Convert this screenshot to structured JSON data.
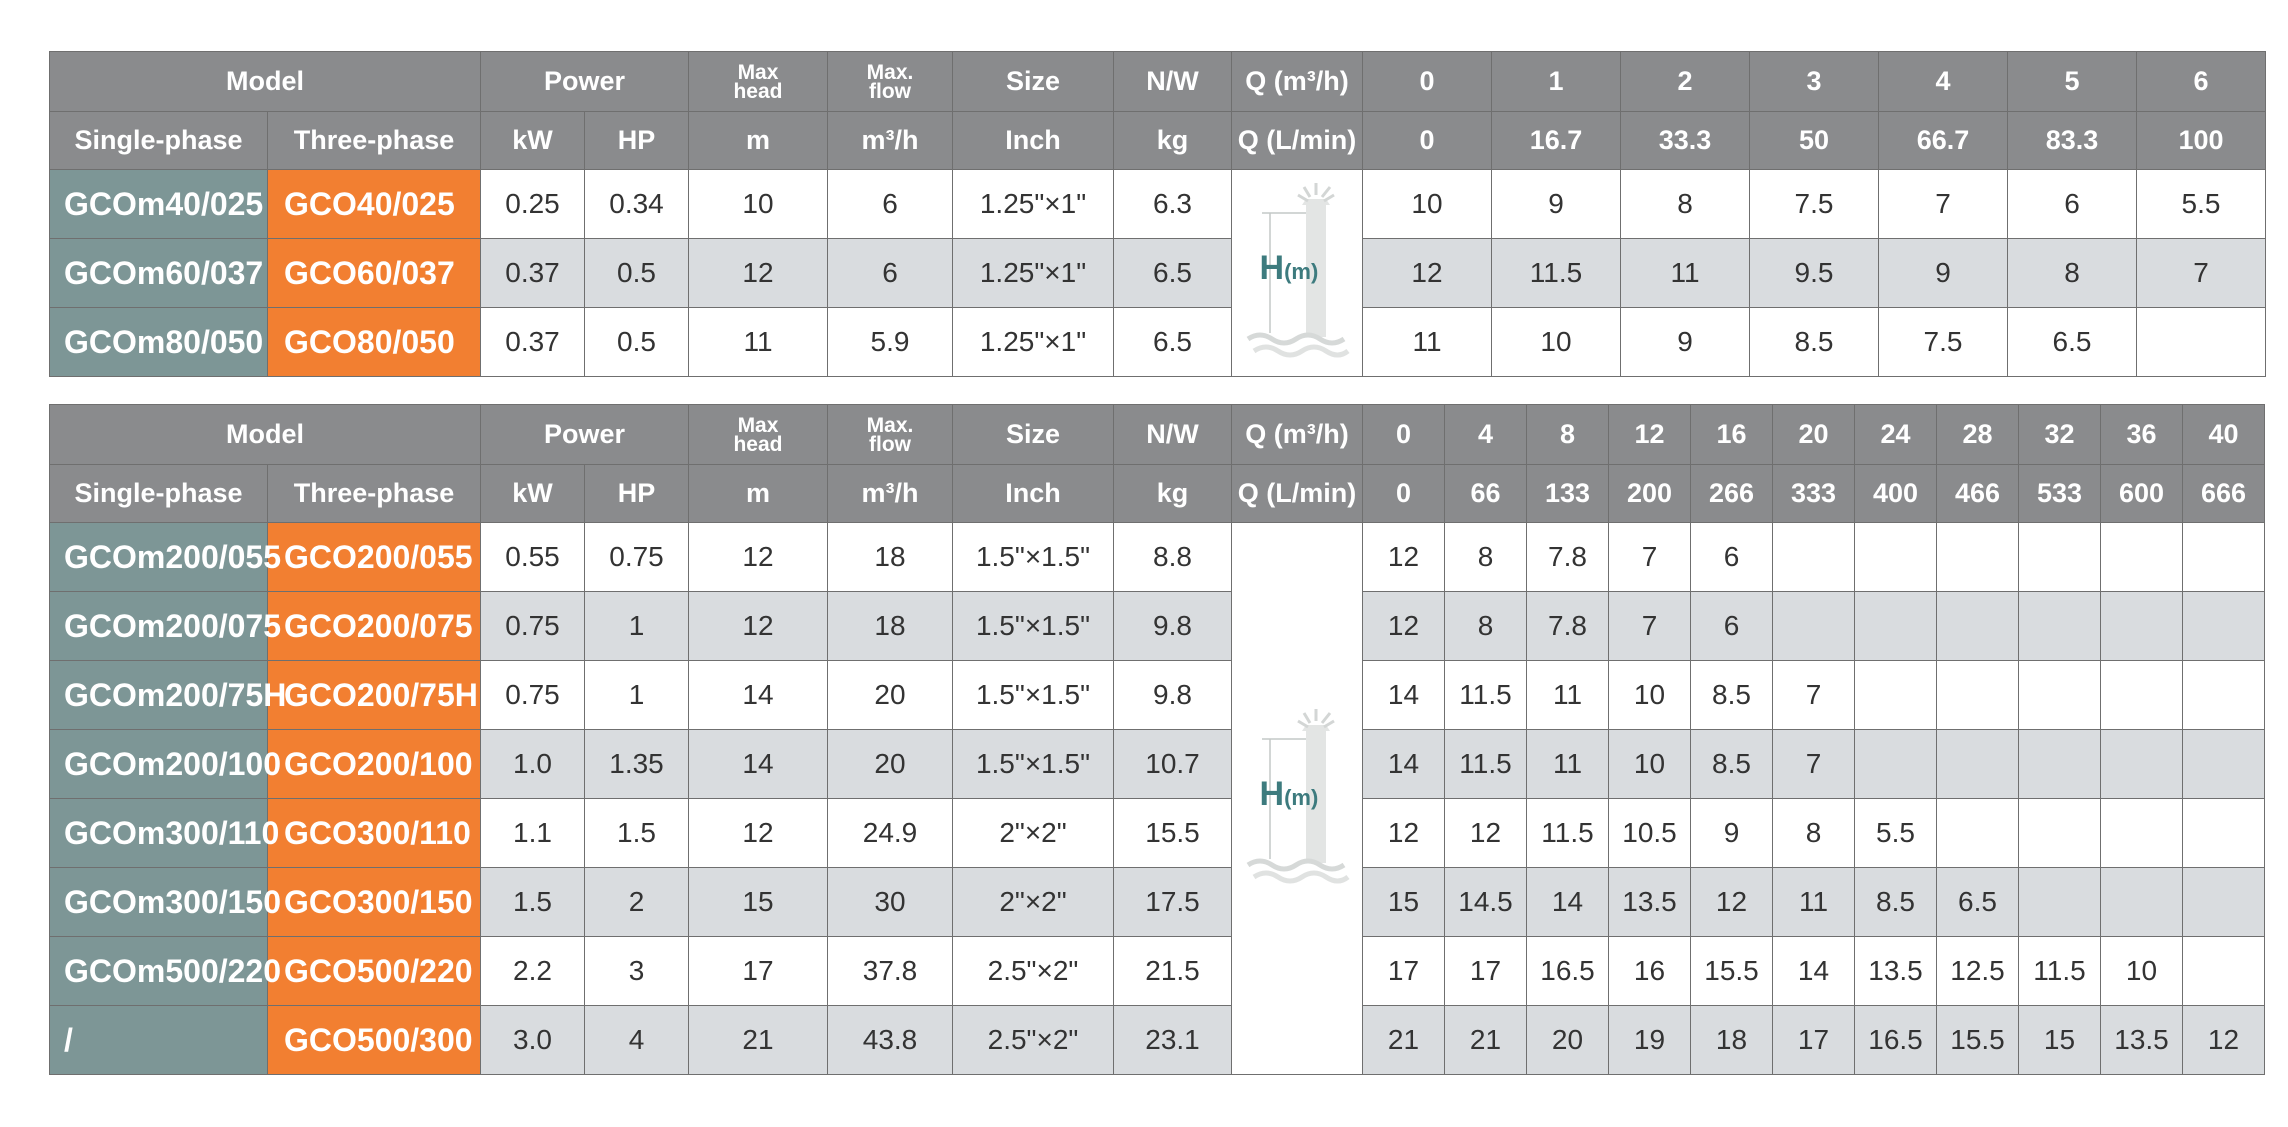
{
  "tables": [
    {
      "headers": {
        "model": "Model",
        "power": "Power",
        "max_head": [
          "Max",
          "head"
        ],
        "max_flow": [
          "Max.",
          "flow"
        ],
        "size": "Size",
        "nw": "N/W",
        "q_m3h": "Q (m³/h)",
        "q_lmin": "Q (L/min)",
        "single_phase": "Single-phase",
        "three_phase": "Three-phase",
        "kw": "kW",
        "hp": "HP",
        "m": "m",
        "m3h": "m³/h",
        "inch": "Inch",
        "kg": "kg",
        "q_m3h_values": [
          "0",
          "1",
          "2",
          "3",
          "4",
          "5",
          "6"
        ],
        "q_lmin_values": [
          "0",
          "16.7",
          "33.3",
          "50",
          "66.7",
          "83.3",
          "100"
        ]
      },
      "rows": [
        {
          "single": "GCOm40/025",
          "three": "GCO40/025",
          "kw": "0.25",
          "hp": "0.34",
          "head": "10",
          "flow": "6",
          "size": "1.25\"×1\"",
          "kg": "6.3",
          "h": [
            "10",
            "9",
            "8",
            "7.5",
            "7",
            "6",
            "5.5"
          ]
        },
        {
          "single": "GCOm60/037",
          "three": "GCO60/037",
          "kw": "0.37",
          "hp": "0.5",
          "head": "12",
          "flow": "6",
          "size": "1.25\"×1\"",
          "kg": "6.5",
          "h": [
            "12",
            "11.5",
            "11",
            "9.5",
            "9",
            "8",
            "7"
          ]
        },
        {
          "single": "GCOm80/050",
          "three": "GCO80/050",
          "kw": "0.37",
          "hp": "0.5",
          "head": "11",
          "flow": "5.9",
          "size": "1.25\"×1\"",
          "kg": "6.5",
          "h": [
            "11",
            "10",
            "9",
            "8.5",
            "7.5",
            "6.5",
            ""
          ]
        }
      ],
      "icon": {
        "name": "water-head-icon",
        "label": "H",
        "unit": "(m)",
        "color": "#3d7b7e"
      }
    },
    {
      "headers": {
        "model": "Model",
        "power": "Power",
        "max_head": [
          "Max",
          "head"
        ],
        "max_flow": [
          "Max.",
          "flow"
        ],
        "size": "Size",
        "nw": "N/W",
        "q_m3h": "Q (m³/h)",
        "q_lmin": "Q (L/min)",
        "single_phase": "Single-phase",
        "three_phase": "Three-phase",
        "kw": "kW",
        "hp": "HP",
        "m": "m",
        "m3h": "m³/h",
        "inch": "Inch",
        "kg": "kg",
        "q_m3h_values": [
          "0",
          "4",
          "8",
          "12",
          "16",
          "20",
          "24",
          "28",
          "32",
          "36",
          "40"
        ],
        "q_lmin_values": [
          "0",
          "66",
          "133",
          "200",
          "266",
          "333",
          "400",
          "466",
          "533",
          "600",
          "666"
        ]
      },
      "rows": [
        {
          "single": "GCOm200/055",
          "three": "GCO200/055",
          "kw": "0.55",
          "hp": "0.75",
          "head": "12",
          "flow": "18",
          "size": "1.5\"×1.5\"",
          "kg": "8.8",
          "h": [
            "12",
            "8",
            "7.8",
            "7",
            "6",
            "",
            "",
            "",
            "",
            "",
            ""
          ]
        },
        {
          "single": "GCOm200/075",
          "three": "GCO200/075",
          "kw": "0.75",
          "hp": "1",
          "head": "12",
          "flow": "18",
          "size": "1.5\"×1.5\"",
          "kg": "9.8",
          "h": [
            "12",
            "8",
            "7.8",
            "7",
            "6",
            "",
            "",
            "",
            "",
            "",
            ""
          ]
        },
        {
          "single": "GCOm200/75H",
          "three": "GCO200/75H",
          "kw": "0.75",
          "hp": "1",
          "head": "14",
          "flow": "20",
          "size": "1.5\"×1.5\"",
          "kg": "9.8",
          "h": [
            "14",
            "11.5",
            "11",
            "10",
            "8.5",
            "7",
            "",
            "",
            "",
            "",
            ""
          ]
        },
        {
          "single": "GCOm200/100",
          "three": "GCO200/100",
          "kw": "1.0",
          "hp": "1.35",
          "head": "14",
          "flow": "20",
          "size": "1.5\"×1.5\"",
          "kg": "10.7",
          "h": [
            "14",
            "11.5",
            "11",
            "10",
            "8.5",
            "7",
            "",
            "",
            "",
            "",
            ""
          ]
        },
        {
          "single": "GCOm300/110",
          "three": "GCO300/110",
          "kw": "1.1",
          "hp": "1.5",
          "head": "12",
          "flow": "24.9",
          "size": "2\"×2\"",
          "kg": "15.5",
          "h": [
            "12",
            "12",
            "11.5",
            "10.5",
            "9",
            "8",
            "5.5",
            "",
            "",
            "",
            ""
          ]
        },
        {
          "single": "GCOm300/150",
          "three": "GCO300/150",
          "kw": "1.5",
          "hp": "2",
          "head": "15",
          "flow": "30",
          "size": "2\"×2\"",
          "kg": "17.5",
          "h": [
            "15",
            "14.5",
            "14",
            "13.5",
            "12",
            "11",
            "8.5",
            "6.5",
            "",
            "",
            ""
          ]
        },
        {
          "single": "GCOm500/220",
          "three": "GCO500/220",
          "kw": "2.2",
          "hp": "3",
          "head": "17",
          "flow": "37.8",
          "size": "2.5\"×2\"",
          "kg": "21.5",
          "h": [
            "17",
            "17",
            "16.5",
            "16",
            "15.5",
            "14",
            "13.5",
            "12.5",
            "11.5",
            "10",
            ""
          ]
        },
        {
          "single": "/",
          "three": "GCO500/300",
          "kw": "3.0",
          "hp": "4",
          "head": "21",
          "flow": "43.8",
          "size": "2.5\"×2\"",
          "kg": "23.1",
          "h": [
            "21",
            "21",
            "20",
            "19",
            "18",
            "17",
            "16.5",
            "15.5",
            "15",
            "13.5",
            "12"
          ]
        }
      ],
      "icon": {
        "name": "water-head-icon",
        "label": "H",
        "unit": "(m)",
        "color": "#3d7b7e"
      }
    }
  ],
  "colors": {
    "header": "#8a8b8d",
    "single_phase": "#7d9696",
    "three_phase": "#f27f31",
    "stripe": "#d9dcdf"
  }
}
